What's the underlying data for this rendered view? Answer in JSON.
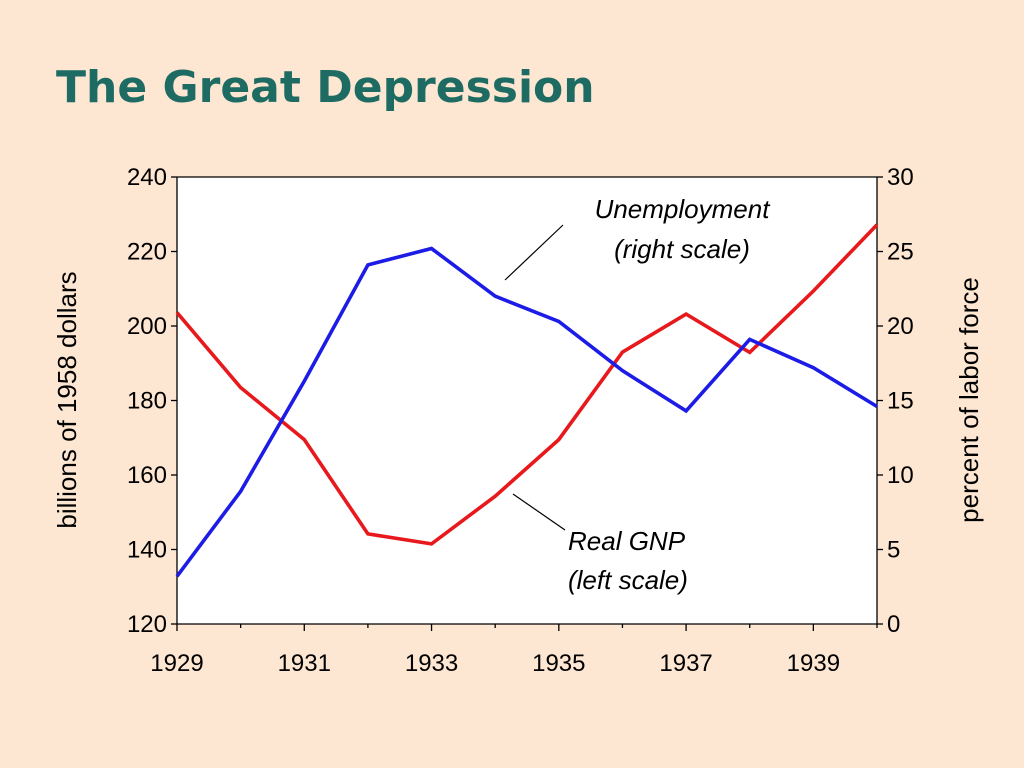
{
  "title": "The Great Depression",
  "chart_data": {
    "type": "line",
    "x": [
      1929,
      1930,
      1931,
      1932,
      1933,
      1934,
      1935,
      1936,
      1937,
      1938,
      1939,
      1940
    ],
    "xticks": [
      "1929",
      "1931",
      "1933",
      "1935",
      "1937",
      "1939"
    ],
    "xlim": [
      1929,
      1940
    ],
    "left_axis": {
      "label": "billions of 1958 dollars",
      "ylim": [
        120,
        240
      ],
      "ticks": [
        "120",
        "140",
        "160",
        "180",
        "200",
        "220",
        "240"
      ]
    },
    "right_axis": {
      "label": "percent of labor force",
      "ylim": [
        0,
        30
      ],
      "ticks": [
        "0",
        "5",
        "10",
        "15",
        "20",
        "25",
        "30"
      ]
    },
    "series": [
      {
        "id": "gnp",
        "axis": "left",
        "color": "#e8191c",
        "values": [
          203.6,
          183.5,
          169.5,
          144.2,
          141.5,
          154.3,
          169.5,
          193.0,
          203.2,
          192.9,
          209.4,
          227.2
        ]
      },
      {
        "id": "unemployment",
        "axis": "right",
        "color": "#1c1ce6",
        "values": [
          3.2,
          8.9,
          16.3,
          24.1,
          25.2,
          22.0,
          20.3,
          17.0,
          14.3,
          19.1,
          17.2,
          14.6
        ]
      }
    ],
    "annotations": [
      {
        "line1": "Unemployment",
        "line2": "(right scale)"
      },
      {
        "line1": "Real GNP",
        "line2": "(left scale)"
      }
    ],
    "grid": false
  }
}
